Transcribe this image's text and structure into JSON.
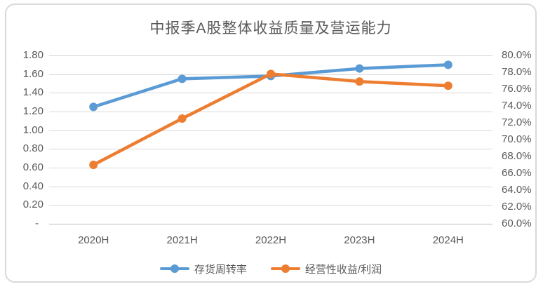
{
  "chart_data": {
    "type": "line",
    "title": "中报季A股整体收益质量及营运能力",
    "categories": [
      "2020H",
      "2021H",
      "2022H",
      "2023H",
      "2024H"
    ],
    "series": [
      {
        "name": "存货周转率",
        "axis": "left",
        "color": "#5B9BD5",
        "values": [
          1.25,
          1.55,
          1.58,
          1.66,
          1.7
        ]
      },
      {
        "name": "经营性收益/利润",
        "axis": "right",
        "color": "#ED7D31",
        "values": [
          67.0,
          72.5,
          77.8,
          76.9,
          76.4
        ]
      }
    ],
    "left_axis": {
      "min": 0,
      "max": 1.8,
      "step": 0.2,
      "tick_labels_top_to_bottom": [
        "1.80",
        "1.60",
        "1.40",
        "1.20",
        "1.00",
        "0.80",
        "0.60",
        "0.40",
        "0.20",
        "-"
      ]
    },
    "right_axis": {
      "min": 60,
      "max": 80,
      "step": 2,
      "tick_labels_top_to_bottom": [
        "80.0%",
        "78.0%",
        "76.0%",
        "74.0%",
        "72.0%",
        "70.0%",
        "68.0%",
        "66.0%",
        "64.0%",
        "62.0%",
        "60.0%"
      ]
    },
    "legend_position": "bottom",
    "grid": true,
    "colors": {
      "gridline": "#D9D9D9",
      "axis_line": "#BFBFBF",
      "text": "#595959",
      "card_border": "#D9D9D9",
      "background": "#FFFFFF"
    }
  }
}
